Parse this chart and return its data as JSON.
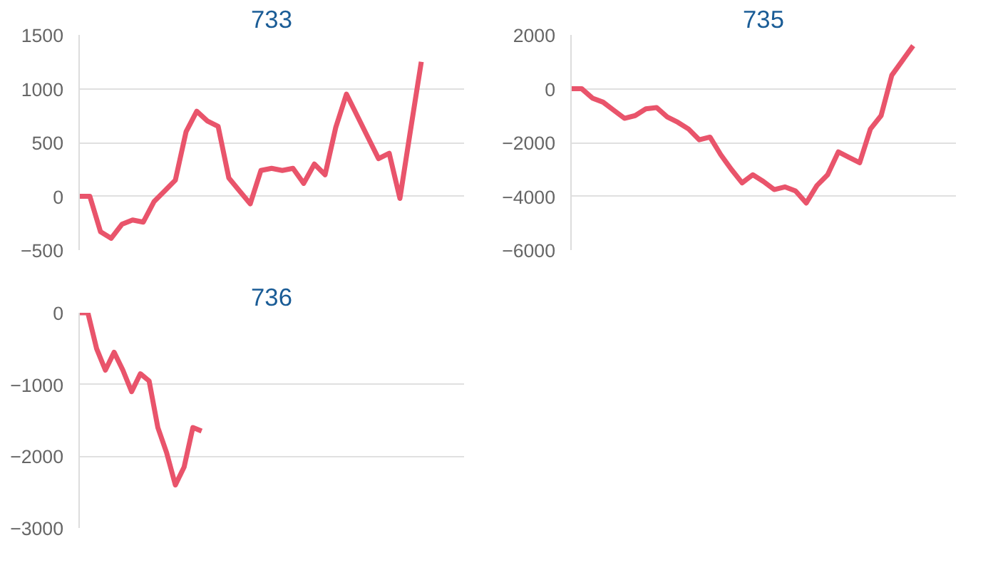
{
  "chart_data": [
    {
      "type": "line",
      "title": "733",
      "categories": [
        null,
        null,
        null,
        null,
        null,
        null,
        null,
        null,
        null,
        null,
        null,
        null,
        null,
        null,
        null,
        null,
        null,
        null,
        null,
        null,
        null,
        null,
        null,
        null,
        null,
        null,
        null,
        null,
        null,
        null,
        null,
        null,
        null,
        null,
        null,
        null,
        null
      ],
      "series": [
        {
          "color": "#e9546b",
          "values": [
            0,
            0,
            -330,
            -390,
            -260,
            -220,
            -240,
            -50,
            50,
            150,
            600,
            790,
            700,
            650,
            170,
            50,
            -70,
            240,
            260,
            240,
            260,
            120,
            300,
            200,
            640,
            950,
            750,
            550,
            350,
            400,
            -20,
            620,
            1250,
            null,
            null,
            null,
            null
          ]
        }
      ],
      "ylim": [
        -500,
        1500
      ],
      "yticks": [
        -500,
        0,
        500,
        1000,
        1500
      ],
      "grid": "y",
      "tick_labels": "y",
      "line_style": "solid",
      "marker": "none"
    },
    {
      "type": "line",
      "title": "735",
      "categories": [
        null,
        null,
        null,
        null,
        null,
        null,
        null,
        null,
        null,
        null,
        null,
        null,
        null,
        null,
        null,
        null,
        null,
        null,
        null,
        null,
        null,
        null,
        null,
        null,
        null,
        null,
        null,
        null,
        null,
        null,
        null,
        null,
        null,
        null,
        null,
        null,
        null
      ],
      "series": [
        {
          "color": "#e9546b",
          "values": [
            0,
            0,
            -350,
            -500,
            -800,
            -1100,
            -1000,
            -750,
            -700,
            -1050,
            -1250,
            -1500,
            -1900,
            -1800,
            -2450,
            -3000,
            -3500,
            -3200,
            -3450,
            -3750,
            -3650,
            -3800,
            -4250,
            -3600,
            -3200,
            -2350,
            -2550,
            -2750,
            -1500,
            -1000,
            500,
            1050,
            1600,
            null,
            null,
            null,
            null
          ]
        }
      ],
      "ylim": [
        -6000,
        2000
      ],
      "yticks": [
        -6000,
        -4000,
        -2000,
        0,
        2000
      ],
      "grid": "y",
      "tick_labels": "y",
      "line_style": "solid",
      "marker": "none"
    },
    {
      "type": "line",
      "title": "736",
      "categories": [
        null,
        null,
        null,
        null,
        null,
        null,
        null,
        null,
        null,
        null,
        null,
        null,
        null,
        null,
        null,
        null,
        null,
        null,
        null,
        null,
        null,
        null,
        null,
        null,
        null,
        null,
        null,
        null,
        null,
        null,
        null,
        null,
        null,
        null,
        null,
        null,
        null,
        null,
        null,
        null,
        null,
        null,
        null,
        null,
        null
      ],
      "series": [
        {
          "color": "#e9546b",
          "values": [
            0,
            0,
            -500,
            -800,
            -550,
            -800,
            -1100,
            -850,
            -950,
            -1600,
            -1950,
            -2400,
            -2150,
            -1600,
            -1650,
            null,
            null,
            null,
            null,
            null,
            null,
            null,
            null,
            null,
            null,
            null,
            null,
            null,
            null,
            null,
            null,
            null,
            null,
            null,
            null,
            null,
            null,
            null,
            null,
            null,
            null,
            null,
            null,
            null,
            null
          ]
        }
      ],
      "ylim": [
        -3000,
        0
      ],
      "yticks": [
        -3000,
        -2000,
        -1000,
        0
      ],
      "grid": "y",
      "tick_labels": "y",
      "line_style": "solid",
      "marker": "none"
    }
  ]
}
